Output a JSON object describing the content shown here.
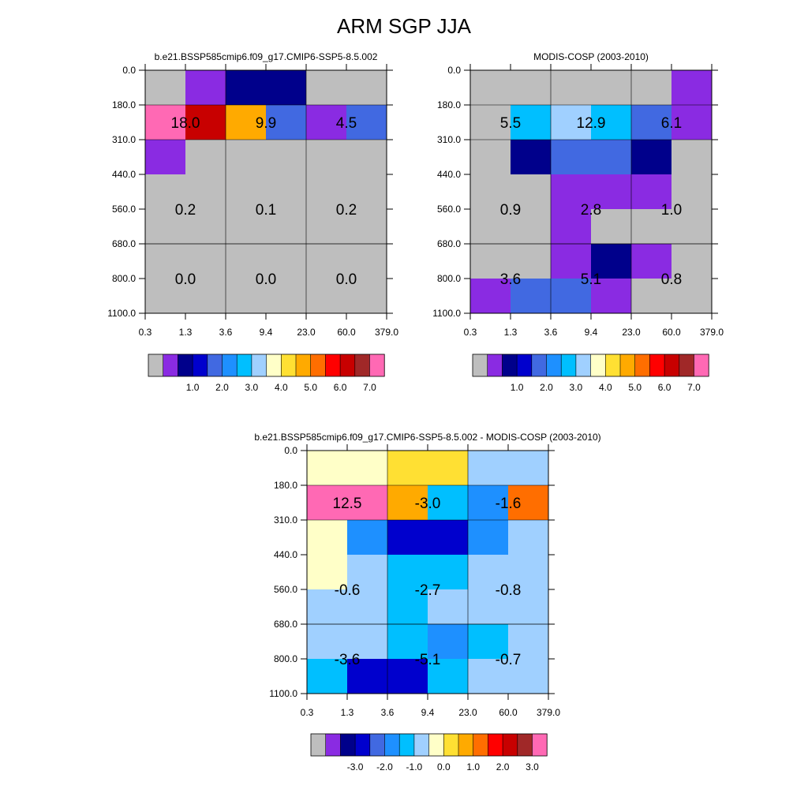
{
  "title": "ARM SGP JJA",
  "colors": {
    "abs": [
      "#bebebe",
      "#8a2be2",
      "#00008b",
      "#0000cd",
      "#4169e1",
      "#1e90ff",
      "#00bfff",
      "#a0d0ff",
      "#ffffc8",
      "#ffe033",
      "#ffaa00",
      "#ff6e00",
      "#ff0000",
      "#c80000",
      "#a02828",
      "#ff69b4"
    ],
    "diff": [
      "#bebebe",
      "#8a2be2",
      "#00008b",
      "#0000cd",
      "#4169e1",
      "#1e90ff",
      "#00bfff",
      "#a0d0ff",
      "#ffffc8",
      "#ffe033",
      "#ffaa00",
      "#ff6e00",
      "#ff0000",
      "#c80000",
      "#a02828",
      "#ff69b4"
    ]
  },
  "chart_data": [
    {
      "type": "heatmap",
      "id": "model",
      "title": "b.e21.BSSP585cmip6.f09_g17.CMIP6-SSP5-8.5.002",
      "x_ticks": [
        "0.3",
        "1.3",
        "3.6",
        "9.4",
        "23.0",
        "60.0",
        "379.0"
      ],
      "y_ticks": [
        "0.0",
        "180.0",
        "310.0",
        "440.0",
        "560.0",
        "680.0",
        "800.0",
        "1100.0"
      ],
      "palette": "abs",
      "cells": [
        [
          0,
          1,
          2,
          2,
          0,
          0
        ],
        [
          15,
          13,
          10,
          4,
          1,
          4
        ],
        [
          1,
          0,
          0,
          0,
          0,
          0
        ],
        [
          0,
          0,
          0,
          0,
          0,
          0
        ],
        [
          0,
          0,
          0,
          0,
          0,
          0
        ],
        [
          0,
          0,
          0,
          0,
          0,
          0
        ],
        [
          0,
          0,
          0,
          0,
          0,
          0
        ]
      ],
      "block_labels": [
        [
          "18.0",
          "9.9",
          "4.5"
        ],
        [
          "0.2",
          "0.1",
          "0.2"
        ],
        [
          "0.0",
          "0.0",
          "0.0"
        ]
      ],
      "colorbar_labels": [
        "1.0",
        "2.0",
        "3.0",
        "4.0",
        "5.0",
        "6.0",
        "7.0"
      ]
    },
    {
      "type": "heatmap",
      "id": "obs",
      "title": "MODIS-COSP (2003-2010)",
      "x_ticks": [
        "0.3",
        "1.3",
        "3.6",
        "9.4",
        "23.0",
        "60.0",
        "379.0"
      ],
      "y_ticks": [
        "0.0",
        "180.0",
        "310.0",
        "440.0",
        "560.0",
        "680.0",
        "800.0",
        "1100.0"
      ],
      "palette": "abs",
      "cells": [
        [
          0,
          0,
          0,
          0,
          0,
          1
        ],
        [
          0,
          6,
          7,
          6,
          4,
          1
        ],
        [
          0,
          2,
          4,
          4,
          2,
          0
        ],
        [
          0,
          0,
          1,
          1,
          1,
          0
        ],
        [
          0,
          0,
          1,
          0,
          0,
          0
        ],
        [
          0,
          0,
          1,
          2,
          1,
          0
        ],
        [
          1,
          4,
          4,
          1,
          0,
          0
        ]
      ],
      "block_labels": [
        [
          "5.5",
          "12.9",
          "6.1"
        ],
        [
          "0.9",
          "2.8",
          "1.0"
        ],
        [
          "3.6",
          "5.1",
          "0.8"
        ]
      ],
      "colorbar_labels": [
        "1.0",
        "2.0",
        "3.0",
        "4.0",
        "5.0",
        "6.0",
        "7.0"
      ]
    },
    {
      "type": "heatmap",
      "id": "diff",
      "title": "b.e21.BSSP585cmip6.f09_g17.CMIP6-SSP5-8.5.002 - MODIS-COSP (2003-2010)",
      "x_ticks": [
        "0.3",
        "1.3",
        "3.6",
        "9.4",
        "23.0",
        "60.0",
        "379.0"
      ],
      "y_ticks": [
        "0.0",
        "180.0",
        "310.0",
        "440.0",
        "560.0",
        "680.0",
        "800.0",
        "1100.0"
      ],
      "palette": "diff",
      "cells": [
        [
          8,
          8,
          9,
          9,
          7,
          7
        ],
        [
          15,
          15,
          10,
          6,
          5,
          11
        ],
        [
          8,
          5,
          3,
          3,
          5,
          7
        ],
        [
          8,
          7,
          6,
          6,
          7,
          7
        ],
        [
          7,
          7,
          6,
          7,
          7,
          7
        ],
        [
          7,
          7,
          6,
          5,
          6,
          7
        ],
        [
          6,
          3,
          3,
          6,
          7,
          7
        ]
      ],
      "block_labels": [
        [
          "12.5",
          "-3.0",
          "-1.6"
        ],
        [
          "-0.6",
          "-2.7",
          "-0.8"
        ],
        [
          "-3.6",
          "-5.1",
          "-0.7"
        ]
      ],
      "colorbar_labels": [
        "-3.0",
        "-2.0",
        "-1.0",
        "0.0",
        "1.0",
        "2.0",
        "3.0"
      ]
    }
  ]
}
